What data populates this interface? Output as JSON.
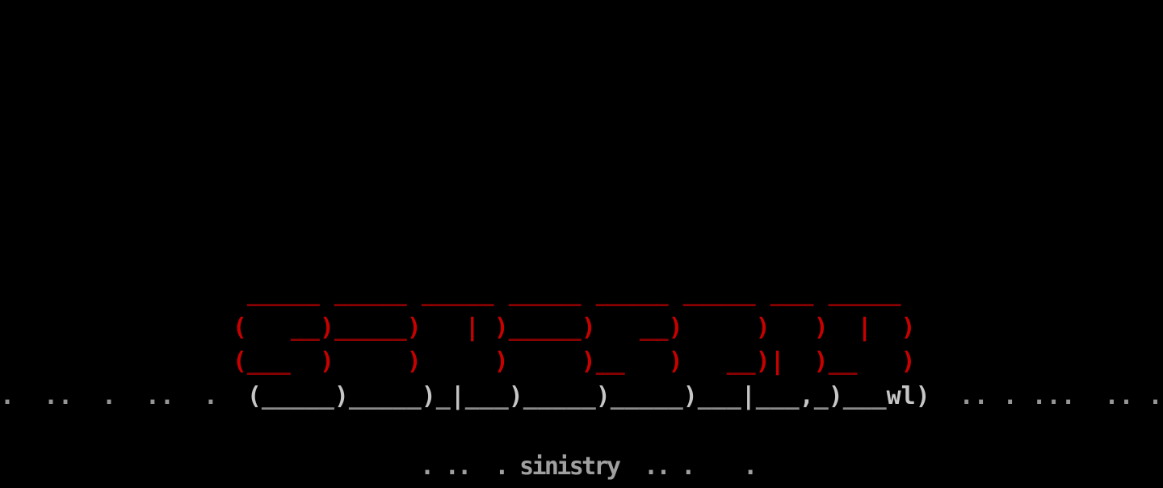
{
  "palette": {
    "background": "#000000",
    "red": "#C80000",
    "darkRed": "#8B0000",
    "gray": "#C6C6C6",
    "darkGray": "#8A8A8A",
    "dotGray": "#969696",
    "textGray": "#A0A0A0"
  },
  "banner": {
    "lines": [
      [
        {
          "t": "                 _____ _____ _____ _____ _____ _____ ___ _____",
          "c": "darkRed"
        }
      ],
      [
        {
          "t": "                (   ",
          "c": "red"
        },
        {
          "t": "__",
          "c": "darkRed"
        },
        {
          "t": ")",
          "c": "red"
        },
        {
          "t": "_____",
          "c": "darkRed"
        },
        {
          "t": ")   | )",
          "c": "red"
        },
        {
          "t": "_____",
          "c": "darkRed"
        },
        {
          "t": ")   ",
          "c": "red"
        },
        {
          "t": "__",
          "c": "darkRed"
        },
        {
          "t": ")     )   )  |  )",
          "c": "red"
        }
      ],
      [
        {
          "t": "                (",
          "c": "red"
        },
        {
          "t": "___",
          "c": "darkRed"
        },
        {
          "t": "  )     )     )     )",
          "c": "red"
        },
        {
          "t": "__",
          "c": "darkRed"
        },
        {
          "t": "   )   ",
          "c": "red"
        },
        {
          "t": "__",
          "c": "darkRed"
        },
        {
          "t": ")|  )",
          "c": "red"
        },
        {
          "t": "__",
          "c": "darkRed"
        },
        {
          "t": "   )",
          "c": "red"
        }
      ],
      [
        {
          "t": ".  ..  .  ..  .  ",
          "c": "dotGray"
        },
        {
          "t": "(",
          "c": "gray"
        },
        {
          "t": "_____",
          "c": "darkGray"
        },
        {
          "t": ")",
          "c": "gray"
        },
        {
          "t": "_____",
          "c": "darkGray"
        },
        {
          "t": ")",
          "c": "gray"
        },
        {
          "t": "_",
          "c": "darkGray"
        },
        {
          "t": "|",
          "c": "gray"
        },
        {
          "t": "___",
          "c": "darkGray"
        },
        {
          "t": ")",
          "c": "gray"
        },
        {
          "t": "_____",
          "c": "darkGray"
        },
        {
          "t": ")",
          "c": "gray"
        },
        {
          "t": "_____",
          "c": "darkGray"
        },
        {
          "t": ")",
          "c": "gray"
        },
        {
          "t": "___",
          "c": "darkGray"
        },
        {
          "t": "|",
          "c": "gray"
        },
        {
          "t": "___",
          "c": "darkGray"
        },
        {
          "t": ",",
          "c": "gray"
        },
        {
          "t": "_",
          "c": "darkGray"
        },
        {
          "t": ")",
          "c": "gray"
        },
        {
          "t": "___",
          "c": "darkGray"
        },
        {
          "t": "wl)  ",
          "c": "gray"
        },
        {
          "t": ".. . ...  .. .",
          "c": "dotGray"
        }
      ]
    ]
  },
  "footer": {
    "text": ". ..  . sinistry  .. .    ."
  }
}
